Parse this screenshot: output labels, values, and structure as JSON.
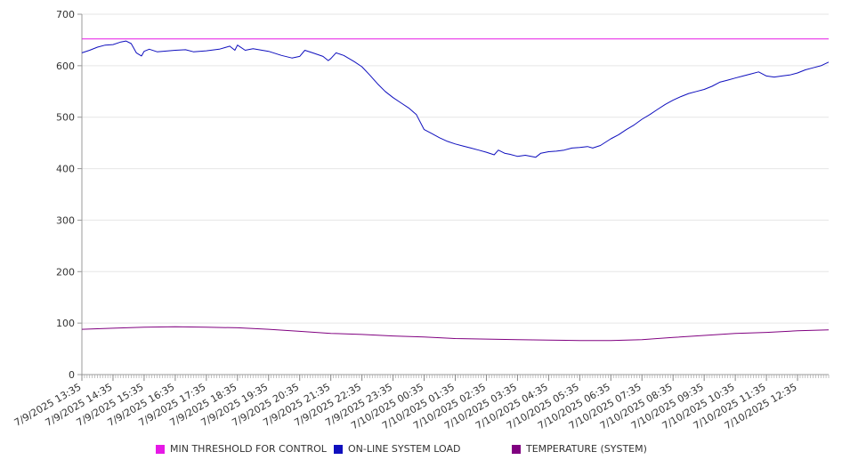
{
  "chart_data": {
    "type": "line",
    "title": "",
    "xlabel": "",
    "ylabel": "",
    "ylim": [
      0,
      700
    ],
    "yticks": [
      0,
      100,
      200,
      300,
      400,
      500,
      600,
      700
    ],
    "grid": true,
    "legend_position": "bottom",
    "x_tick_labels": [
      "7/9/2025 13:35",
      "7/9/2025 14:35",
      "7/9/2025 15:35",
      "7/9/2025 16:35",
      "7/9/2025 17:35",
      "7/9/2025 18:35",
      "7/9/2025 19:35",
      "7/9/2025 20:35",
      "7/9/2025 21:35",
      "7/9/2025 22:35",
      "7/9/2025 23:35",
      "7/10/2025 00:35",
      "7/10/2025 01:35",
      "7/10/2025 02:35",
      "7/10/2025 03:35",
      "7/10/2025 04:35",
      "7/10/2025 05:35",
      "7/10/2025 06:35",
      "7/10/2025 07:35",
      "7/10/2025 08:35",
      "7/10/2025 09:35",
      "7/10/2025 10:35",
      "7/10/2025 11:35",
      "7/10/2025 12:35"
    ],
    "series": [
      {
        "name": "MIN THRESHOLD FOR CONTROL",
        "color": "#e619e6",
        "points": [
          [
            "7/9/2025 13:35",
            652
          ],
          [
            "7/10/2025 13:35",
            652
          ]
        ]
      },
      {
        "name": "ON-LINE SYSTEM LOAD",
        "color": "#0f0fbe",
        "points": [
          [
            "7/9/2025 13:35",
            625
          ],
          [
            "7/9/2025 13:50",
            630
          ],
          [
            "7/9/2025 14:05",
            636
          ],
          [
            "7/9/2025 14:20",
            640
          ],
          [
            "7/9/2025 14:35",
            641
          ],
          [
            "7/9/2025 14:50",
            646
          ],
          [
            "7/9/2025 15:00",
            648
          ],
          [
            "7/9/2025 15:10",
            643
          ],
          [
            "7/9/2025 15:20",
            625
          ],
          [
            "7/9/2025 15:30",
            619
          ],
          [
            "7/9/2025 15:35",
            628
          ],
          [
            "7/9/2025 15:45",
            632
          ],
          [
            "7/9/2025 16:00",
            627
          ],
          [
            "7/9/2025 16:35",
            630
          ],
          [
            "7/9/2025 16:55",
            631
          ],
          [
            "7/9/2025 17:10",
            627
          ],
          [
            "7/9/2025 17:35",
            629
          ],
          [
            "7/9/2025 18:00",
            632
          ],
          [
            "7/9/2025 18:20",
            638
          ],
          [
            "7/9/2025 18:30",
            630
          ],
          [
            "7/9/2025 18:35",
            640
          ],
          [
            "7/9/2025 18:50",
            630
          ],
          [
            "7/9/2025 19:05",
            633
          ],
          [
            "7/9/2025 19:35",
            628
          ],
          [
            "7/9/2025 20:00",
            620
          ],
          [
            "7/9/2025 20:20",
            615
          ],
          [
            "7/9/2025 20:35",
            618
          ],
          [
            "7/9/2025 20:45",
            630
          ],
          [
            "7/9/2025 21:00",
            625
          ],
          [
            "7/9/2025 21:20",
            618
          ],
          [
            "7/9/2025 21:30",
            610
          ],
          [
            "7/9/2025 21:35",
            614
          ],
          [
            "7/9/2025 21:45",
            625
          ],
          [
            "7/9/2025 22:00",
            620
          ],
          [
            "7/9/2025 22:20",
            608
          ],
          [
            "7/9/2025 22:35",
            598
          ],
          [
            "7/9/2025 22:50",
            582
          ],
          [
            "7/9/2025 23:05",
            565
          ],
          [
            "7/9/2025 23:20",
            550
          ],
          [
            "7/9/2025 23:35",
            538
          ],
          [
            "7/9/2025 23:50",
            528
          ],
          [
            "7/10/2025 00:05",
            518
          ],
          [
            "7/10/2025 00:20",
            505
          ],
          [
            "7/10/2025 00:35",
            476
          ],
          [
            "7/10/2025 00:50",
            468
          ],
          [
            "7/10/2025 01:05",
            460
          ],
          [
            "7/10/2025 01:20",
            453
          ],
          [
            "7/10/2025 01:35",
            448
          ],
          [
            "7/10/2025 01:50",
            444
          ],
          [
            "7/10/2025 02:05",
            440
          ],
          [
            "7/10/2025 02:20",
            436
          ],
          [
            "7/10/2025 02:35",
            432
          ],
          [
            "7/10/2025 02:50",
            427
          ],
          [
            "7/10/2025 02:58",
            436
          ],
          [
            "7/10/2025 03:10",
            430
          ],
          [
            "7/10/2025 03:20",
            428
          ],
          [
            "7/10/2025 03:35",
            424
          ],
          [
            "7/10/2025 03:50",
            426
          ],
          [
            "7/10/2025 04:10",
            422
          ],
          [
            "7/10/2025 04:20",
            430
          ],
          [
            "7/10/2025 04:35",
            433
          ],
          [
            "7/10/2025 04:50",
            434
          ],
          [
            "7/10/2025 05:05",
            436
          ],
          [
            "7/10/2025 05:20",
            440
          ],
          [
            "7/10/2025 05:35",
            441
          ],
          [
            "7/10/2025 05:50",
            443
          ],
          [
            "7/10/2025 06:00",
            440
          ],
          [
            "7/10/2025 06:15",
            445
          ],
          [
            "7/10/2025 06:35",
            458
          ],
          [
            "7/10/2025 06:50",
            466
          ],
          [
            "7/10/2025 07:05",
            476
          ],
          [
            "7/10/2025 07:20",
            485
          ],
          [
            "7/10/2025 07:35",
            496
          ],
          [
            "7/10/2025 07:50",
            505
          ],
          [
            "7/10/2025 08:05",
            515
          ],
          [
            "7/10/2025 08:20",
            525
          ],
          [
            "7/10/2025 08:35",
            533
          ],
          [
            "7/10/2025 08:50",
            540
          ],
          [
            "7/10/2025 09:05",
            546
          ],
          [
            "7/10/2025 09:20",
            550
          ],
          [
            "7/10/2025 09:35",
            554
          ],
          [
            "7/10/2025 09:50",
            560
          ],
          [
            "7/10/2025 10:05",
            568
          ],
          [
            "7/10/2025 10:20",
            572
          ],
          [
            "7/10/2025 10:35",
            576
          ],
          [
            "7/10/2025 10:50",
            580
          ],
          [
            "7/10/2025 11:05",
            584
          ],
          [
            "7/10/2025 11:20",
            588
          ],
          [
            "7/10/2025 11:35",
            580
          ],
          [
            "7/10/2025 11:50",
            578
          ],
          [
            "7/10/2025 12:05",
            580
          ],
          [
            "7/10/2025 12:20",
            582
          ],
          [
            "7/10/2025 12:35",
            586
          ],
          [
            "7/10/2025 12:50",
            592
          ],
          [
            "7/10/2025 13:05",
            596
          ],
          [
            "7/10/2025 13:20",
            600
          ],
          [
            "7/10/2025 13:35",
            607
          ]
        ]
      },
      {
        "name": "TEMPERATURE (SYSTEM)",
        "color": "#800080",
        "points": [
          [
            "7/9/2025 13:35",
            88
          ],
          [
            "7/9/2025 14:35",
            90
          ],
          [
            "7/9/2025 15:35",
            92
          ],
          [
            "7/9/2025 16:35",
            93
          ],
          [
            "7/9/2025 17:35",
            92
          ],
          [
            "7/9/2025 18:35",
            91
          ],
          [
            "7/9/2025 19:35",
            88
          ],
          [
            "7/9/2025 20:35",
            84
          ],
          [
            "7/9/2025 21:35",
            80
          ],
          [
            "7/9/2025 22:35",
            78
          ],
          [
            "7/9/2025 23:35",
            75
          ],
          [
            "7/10/2025 00:35",
            73
          ],
          [
            "7/10/2025 01:35",
            70
          ],
          [
            "7/10/2025 02:35",
            69
          ],
          [
            "7/10/2025 03:35",
            68
          ],
          [
            "7/10/2025 04:35",
            67
          ],
          [
            "7/10/2025 05:35",
            66
          ],
          [
            "7/10/2025 06:35",
            66
          ],
          [
            "7/10/2025 07:35",
            68
          ],
          [
            "7/10/2025 08:35",
            72
          ],
          [
            "7/10/2025 09:35",
            76
          ],
          [
            "7/10/2025 10:35",
            80
          ],
          [
            "7/10/2025 11:35",
            82
          ],
          [
            "7/10/2025 12:35",
            85
          ],
          [
            "7/10/2025 13:35",
            87
          ]
        ]
      }
    ]
  }
}
